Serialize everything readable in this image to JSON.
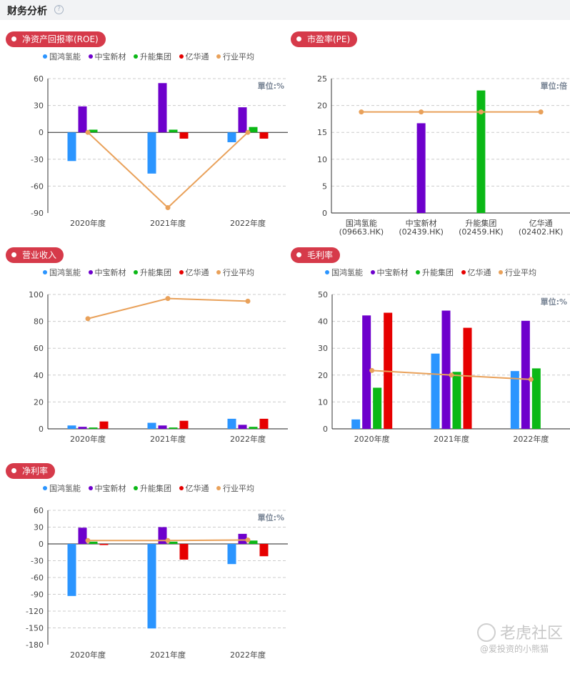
{
  "header": {
    "title": "财务分析",
    "help_icon": "question-circle-icon"
  },
  "colors": {
    "s1": "#2b95ff",
    "s2": "#6e00cc",
    "s3": "#0bb816",
    "s4": "#e60000",
    "avg": "#e9a15a",
    "pill": "#d63a4a"
  },
  "watermark": {
    "brand": "老虎社区",
    "user": "@爱投资的小熊猫"
  },
  "chart_data": [
    {
      "id": "roe",
      "type": "bar",
      "title": "净资产回报率(ROE)",
      "unit": "單位:%",
      "legend": [
        "国鸿氢能",
        "中宝新材",
        "升能集团",
        "亿华通",
        "行业平均"
      ],
      "categories": [
        "2020年度",
        "2021年度",
        "2022年度"
      ],
      "yticks": [
        60,
        30,
        0,
        -30,
        -60,
        -90
      ],
      "ylim": [
        -90,
        60
      ],
      "series": [
        {
          "name": "国鸿氢能",
          "values": [
            -32,
            -46,
            -11
          ]
        },
        {
          "name": "中宝新材",
          "values": [
            29,
            55,
            28
          ]
        },
        {
          "name": "升能集团",
          "values": [
            3,
            3,
            6
          ]
        },
        {
          "name": "亿华通",
          "values": [
            0,
            -7,
            -7
          ]
        }
      ],
      "line": {
        "name": "行业平均",
        "values": [
          0,
          -84,
          0
        ]
      }
    },
    {
      "id": "pe",
      "type": "bar",
      "title": "市盈率(PE)",
      "unit": "單位:倍",
      "categories": [
        "国鸿氢能\n(09663.HK)",
        "中宝新材\n(02439.HK)",
        "升能集团\n(02459.HK)",
        "亿华通\n(02402.HK)"
      ],
      "yticks": [
        25,
        20,
        15,
        10,
        5,
        0
      ],
      "ylim": [
        0,
        25
      ],
      "values": [
        0,
        16.7,
        22.8,
        0
      ],
      "line": {
        "name": "行业平均",
        "values": [
          18.8,
          18.8,
          18.8,
          18.8
        ]
      }
    },
    {
      "id": "revenue",
      "type": "bar",
      "title": "营业收入",
      "legend": [
        "国鸿氢能",
        "中宝新材",
        "升能集团",
        "亿华通",
        "行业平均"
      ],
      "categories": [
        "2020年度",
        "2021年度",
        "2022年度"
      ],
      "yticks": [
        100,
        80,
        60,
        40,
        20,
        0
      ],
      "ylim": [
        0,
        100
      ],
      "series": [
        {
          "name": "国鸿氢能",
          "values": [
            2.5,
            4.5,
            7.5
          ]
        },
        {
          "name": "中宝新材",
          "values": [
            1.5,
            2.5,
            3.0
          ]
        },
        {
          "name": "升能集团",
          "values": [
            1.0,
            1.0,
            1.5
          ]
        },
        {
          "name": "亿华通",
          "values": [
            5.5,
            6.0,
            7.5
          ]
        }
      ],
      "line": {
        "name": "行业平均",
        "values": [
          82,
          97,
          95
        ]
      }
    },
    {
      "id": "gross",
      "type": "bar",
      "title": "毛利率",
      "unit": "單位:%",
      "legend": [
        "国鸿氢能",
        "中宝新材",
        "升能集团",
        "亿华通",
        "行业平均"
      ],
      "categories": [
        "2020年度",
        "2021年度",
        "2022年度"
      ],
      "yticks": [
        50,
        40,
        30,
        20,
        10,
        0
      ],
      "ylim": [
        0,
        50
      ],
      "series": [
        {
          "name": "国鸿氢能",
          "values": [
            3.5,
            28,
            21.5
          ]
        },
        {
          "name": "中宝新材",
          "values": [
            42.2,
            44,
            40.2
          ]
        },
        {
          "name": "升能集团",
          "values": [
            15.3,
            21.2,
            22.5
          ]
        },
        {
          "name": "亿华通",
          "values": [
            43.2,
            37.6,
            0
          ]
        }
      ],
      "line": {
        "name": "行业平均",
        "values": [
          21.7,
          20,
          18.4
        ]
      }
    },
    {
      "id": "net",
      "type": "bar",
      "title": "净利率",
      "unit": "單位:%",
      "legend": [
        "国鸿氢能",
        "中宝新材",
        "升能集团",
        "亿华通",
        "行业平均"
      ],
      "categories": [
        "2020年度",
        "2021年度",
        "2022年度"
      ],
      "yticks": [
        60,
        30,
        0,
        -30,
        -60,
        -90,
        -120,
        -150,
        -180
      ],
      "ylim": [
        -180,
        60
      ],
      "series": [
        {
          "name": "国鸿氢能",
          "values": [
            -93,
            -151,
            -36
          ]
        },
        {
          "name": "中宝新材",
          "values": [
            29,
            30,
            18
          ]
        },
        {
          "name": "升能集团",
          "values": [
            4,
            4,
            6
          ]
        },
        {
          "name": "亿华通",
          "values": [
            -2,
            -28,
            -22
          ]
        }
      ],
      "line": {
        "name": "行业平均",
        "values": [
          6,
          6,
          7
        ]
      }
    }
  ]
}
